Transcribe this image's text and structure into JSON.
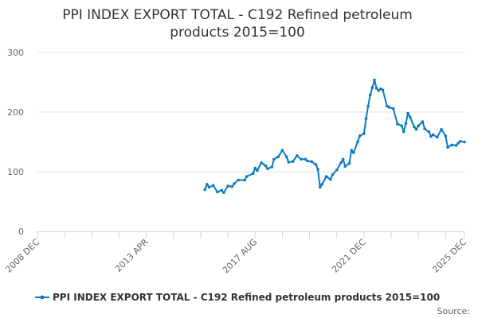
{
  "chart_data": {
    "type": "line",
    "title_lines": [
      "PPI INDEX EXPORT TOTAL - C192 Refined petroleum",
      "products 2015=100"
    ],
    "xlabel": "",
    "ylabel": "",
    "xlim": [
      "2008-12",
      "2025-12"
    ],
    "ylim": [
      0,
      300
    ],
    "y_ticks": [
      "0",
      "100",
      "200",
      "300"
    ],
    "x_ticks": [
      {
        "label": "2008 DEC",
        "date": "2008-12"
      },
      {
        "label": "2013 APR",
        "date": "2013-04"
      },
      {
        "label": "2017 AUG",
        "date": "2017-08"
      },
      {
        "label": "2021 DEC",
        "date": "2021-12"
      },
      {
        "label": "2025 DEC",
        "date": "2025-12"
      }
    ],
    "grid": "horizontal",
    "legend_position": "bottom",
    "color": "#0a7bc1",
    "series": [
      {
        "name": "PPI INDEX EXPORT TOTAL - C192 Refined petroleum products 2015=100",
        "x": [
          "2015-08",
          "2015-09",
          "2015-10",
          "2015-12",
          "2016-02",
          "2016-04",
          "2016-05",
          "2016-07",
          "2016-09",
          "2016-10",
          "2016-12",
          "2017-03",
          "2017-04",
          "2017-07",
          "2017-08",
          "2017-09",
          "2017-11",
          "2018-01",
          "2018-02",
          "2018-04",
          "2018-05",
          "2018-07",
          "2018-09",
          "2018-11",
          "2018-12",
          "2019-02",
          "2019-04",
          "2019-06",
          "2019-08",
          "2019-09",
          "2019-11",
          "2020-01",
          "2020-02",
          "2020-03",
          "2020-04",
          "2020-06",
          "2020-08",
          "2020-09",
          "2020-11",
          "2021-01",
          "2021-02",
          "2021-03",
          "2021-05",
          "2021-06",
          "2021-07",
          "2021-09",
          "2021-10",
          "2021-12",
          "2022-01",
          "2022-02",
          "2022-03",
          "2022-04",
          "2022-05",
          "2022-06",
          "2022-07",
          "2022-08",
          "2022-09",
          "2022-11",
          "2022-12",
          "2023-02",
          "2023-04",
          "2023-06",
          "2023-07",
          "2023-08",
          "2023-09",
          "2023-10",
          "2023-12",
          "2024-01",
          "2024-02",
          "2024-04",
          "2024-05",
          "2024-07",
          "2024-08",
          "2024-09",
          "2024-11",
          "2025-01",
          "2025-03",
          "2025-04",
          "2025-06",
          "2025-08",
          "2025-09",
          "2025-10",
          "2025-12"
        ],
        "y": [
          70,
          79,
          74,
          77,
          66,
          69,
          65,
          76,
          75,
          80,
          86,
          86,
          92,
          97,
          106,
          102,
          115,
          110,
          105,
          108,
          121,
          125,
          136,
          125,
          116,
          117,
          127,
          121,
          121,
          118,
          117,
          112,
          104,
          74,
          79,
          92,
          87,
          95,
          103,
          115,
          121,
          109,
          114,
          136,
          132,
          150,
          160,
          164,
          189,
          210,
          229,
          241,
          254,
          240,
          236,
          239,
          237,
          210,
          208,
          206,
          180,
          177,
          167,
          181,
          198,
          192,
          175,
          171,
          177,
          184,
          172,
          167,
          159,
          162,
          158,
          171,
          160,
          141,
          145,
          144,
          148,
          151,
          150
        ]
      }
    ]
  },
  "source_label": "Source:"
}
